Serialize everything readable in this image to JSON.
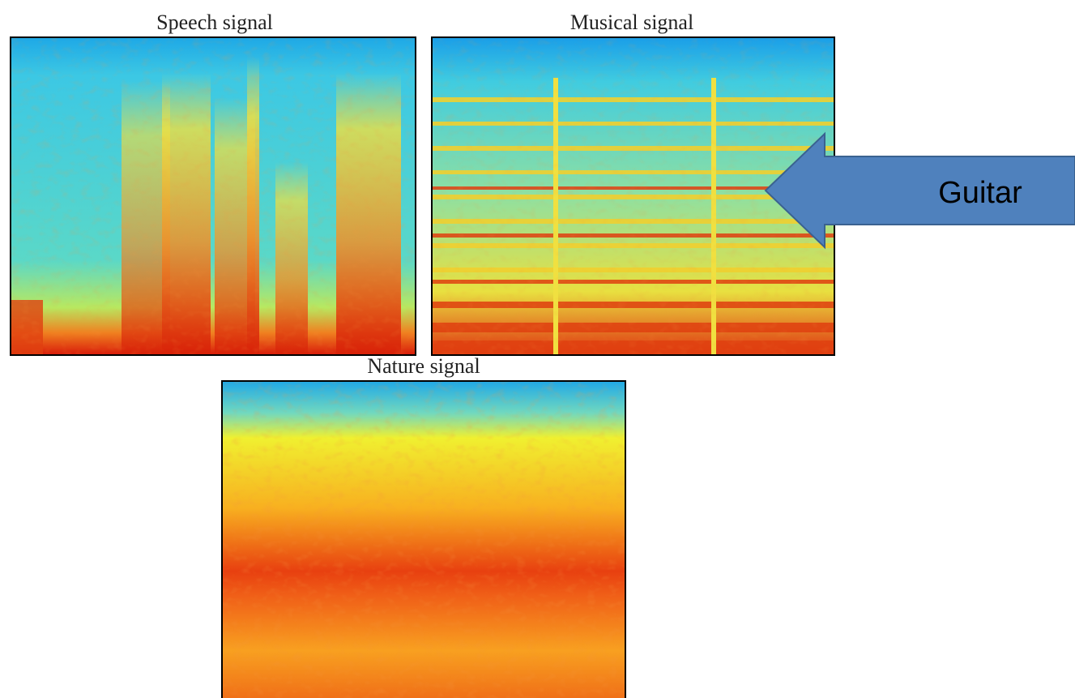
{
  "panels": [
    {
      "title": "Speech signal"
    },
    {
      "title": "Musical signal"
    },
    {
      "title": "Nature signal"
    }
  ],
  "arrow": {
    "label": "Guitar"
  }
}
